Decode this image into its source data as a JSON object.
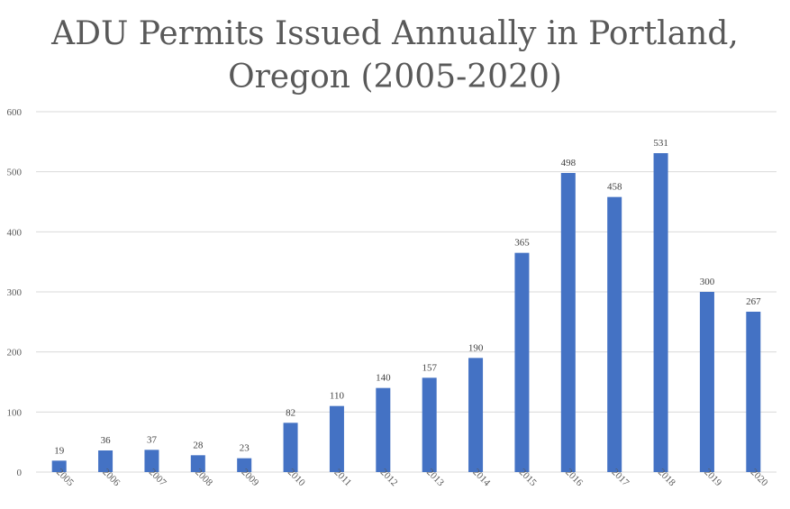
{
  "chart_data": {
    "type": "bar",
    "title": "ADU Permits Issued Annually in Portland, Oregon (2005-2020)",
    "xlabel": "",
    "ylabel": "",
    "categories": [
      "2005",
      "2006",
      "2007",
      "2008",
      "2009",
      "2010",
      "2011",
      "2012",
      "2013",
      "2014",
      "2015",
      "2016",
      "2017",
      "2018",
      "2019",
      "2020"
    ],
    "values": [
      19,
      36,
      37,
      28,
      23,
      82,
      110,
      140,
      157,
      190,
      365,
      498,
      458,
      531,
      300,
      267
    ],
    "y_ticks": [
      "0",
      "100",
      "200",
      "300",
      "400",
      "500",
      "600"
    ],
    "ylim": [
      0,
      600
    ],
    "grid": true,
    "legend": "none",
    "data_labels": true,
    "bar_color": "#4472C4",
    "grid_color": "#D9D9D9"
  }
}
